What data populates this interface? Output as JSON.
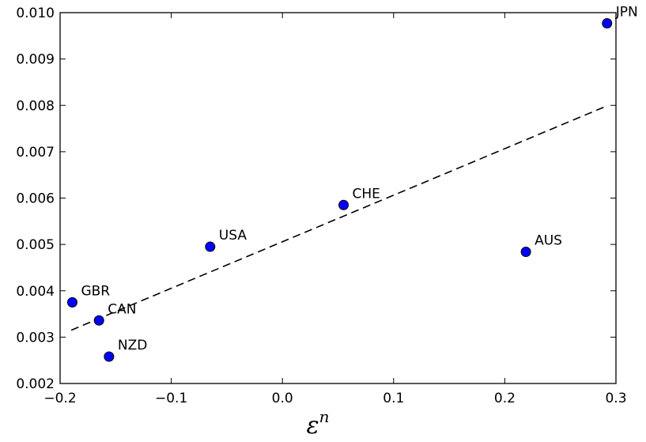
{
  "chart_data": {
    "type": "scatter",
    "title": "",
    "xlabel": "ε",
    "xlabel_superscript": "n",
    "ylabel": "",
    "xlim": [
      -0.2,
      0.3
    ],
    "ylim": [
      0.002,
      0.01
    ],
    "grid": false,
    "xticks": [
      -0.2,
      -0.1,
      0.0,
      0.1,
      0.2,
      0.3
    ],
    "xtick_labels": [
      "−0.2",
      "−0.1",
      "0.0",
      "0.1",
      "0.2",
      "0.3"
    ],
    "yticks": [
      0.002,
      0.003,
      0.004,
      0.005,
      0.006,
      0.007,
      0.008,
      0.009,
      0.01
    ],
    "ytick_labels": [
      "0.002",
      "0.003",
      "0.004",
      "0.005",
      "0.006",
      "0.007",
      "0.008",
      "0.009",
      "0.010"
    ],
    "points": [
      {
        "label": "JPN",
        "x": 0.292,
        "y": 0.00977
      },
      {
        "label": "CHE",
        "x": 0.055,
        "y": 0.00585
      },
      {
        "label": "USA",
        "x": -0.065,
        "y": 0.00495
      },
      {
        "label": "AUS",
        "x": 0.219,
        "y": 0.00484
      },
      {
        "label": "GBR",
        "x": -0.189,
        "y": 0.00375
      },
      {
        "label": "CAN",
        "x": -0.165,
        "y": 0.00336
      },
      {
        "label": "NZD",
        "x": -0.156,
        "y": 0.00258
      }
    ],
    "fit_line": {
      "style": "dashed",
      "x": [
        -0.19,
        0.292
      ],
      "y": [
        0.00315,
        0.00799
      ]
    },
    "marker_color": "#0000ff"
  }
}
